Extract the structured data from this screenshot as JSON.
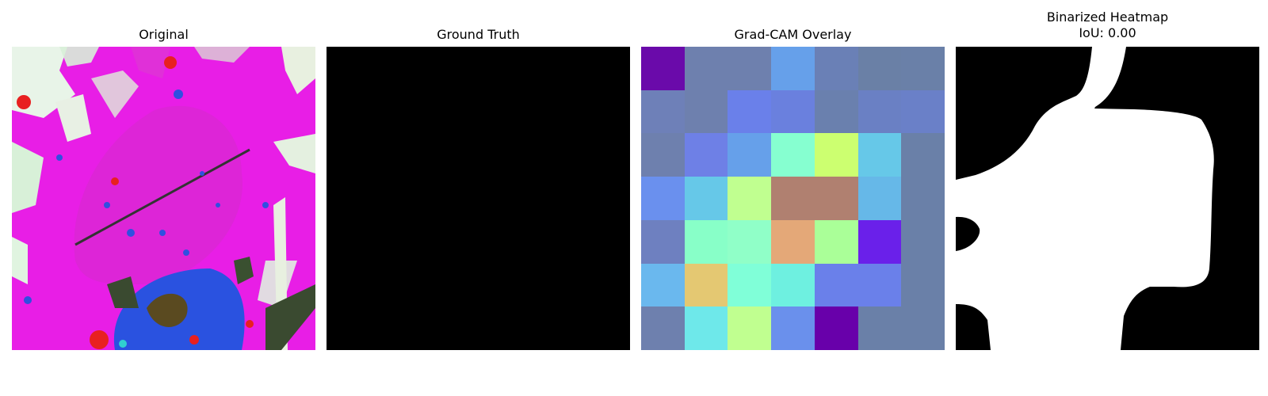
{
  "panels": {
    "original": {
      "title": "Original"
    },
    "ground_truth": {
      "title": "Ground Truth"
    },
    "gradcam": {
      "title": "Grad-CAM Overlay",
      "grid_colors": [
        [
          "#6a0aaa",
          "#6e80ae",
          "#6e80ae",
          "#66a0ea",
          "#6a80b6",
          "#6a80a6",
          "#6a80a8"
        ],
        [
          "#6e80b8",
          "#6e80ae",
          "#6a80ea",
          "#6a80de",
          "#6a80ae",
          "#6a80c4",
          "#6a80c8"
        ],
        [
          "#6e80ae",
          "#6e80e6",
          "#66a0ea",
          "#86ffd0",
          "#ccff70",
          "#66c8e8",
          "#6a80a8"
        ],
        [
          "#6a90ee",
          "#66c8e8",
          "#c0ff90",
          "#b08070",
          "#b08070",
          "#66b8e8",
          "#6a80a8"
        ],
        [
          "#6e80c0",
          "#88ffc8",
          "#90ffc8",
          "#e4a878",
          "#aaff98",
          "#6a20ea",
          "#6a80a8"
        ],
        [
          "#6ab8ee",
          "#e4c872",
          "#80ffd8",
          "#6ef0e0",
          "#6a80ea",
          "#6a80ea",
          "#6a80a8"
        ],
        [
          "#6e80ae",
          "#6ee8ea",
          "#c0ff90",
          "#6a90ec",
          "#6800aa",
          "#6a80a8",
          "#6a80a8"
        ]
      ]
    },
    "binarized": {
      "title_line1": "Binarized Heatmap",
      "title_line2": "IoU: 0.00"
    }
  }
}
